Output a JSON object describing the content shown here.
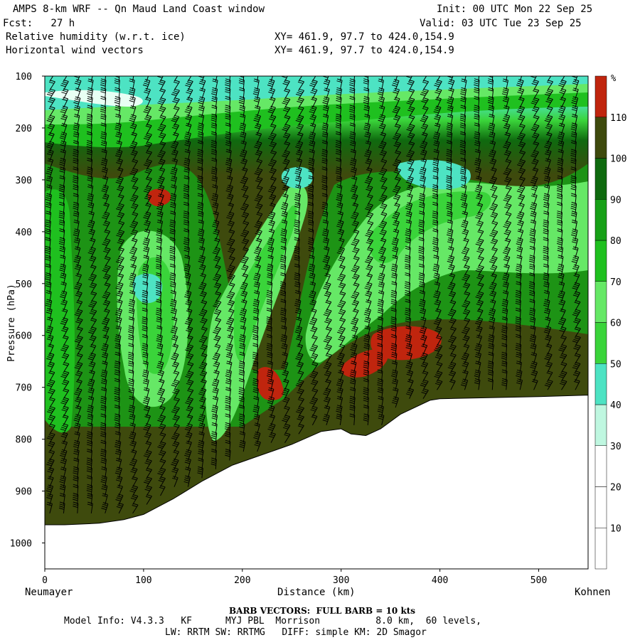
{
  "header": {
    "title": "AMPS 8-km WRF -- Qn Maud Land Coast window",
    "init": "Init: 00 UTC Mon 22 Sep 25",
    "fcst": "Fcst:   27 h",
    "valid": "Valid: 03 UTC Tue 23 Sep 25",
    "field1": "Relative humidity (w.r.t. ice)",
    "field2": "Horizontal wind vectors",
    "xy1": "XY= 461.9, 97.7 to 424.0,154.9",
    "xy2": "XY= 461.9, 97.7 to 424.0,154.9"
  },
  "footer": {
    "barb_note": "BARB VECTORS:  FULL BARB = 10 kts",
    "model_info_1": "Model Info: V4.3.3   KF      MYJ PBL  Morrison          8.0 km,  60 levels,",
    "model_info_2": "LW: RRTM SW: RRTMG   DIFF: simple KM: 2D Smagor"
  },
  "chart_data": {
    "type": "heatmap",
    "title": "Relative humidity (w.r.t. ice)",
    "xlabel": "Distance (km)",
    "ylabel": "Pressure (hPa)",
    "x_left_label": "Neumayer",
    "x_right_label": "Kohnen",
    "xlim": [
      0,
      550
    ],
    "ylim": [
      1050,
      100
    ],
    "x_ticks": [
      0,
      100,
      200,
      300,
      400,
      500
    ],
    "y_ticks": [
      100,
      200,
      300,
      400,
      500,
      600,
      700,
      800,
      900,
      1000
    ],
    "colorbar": {
      "unit": "%",
      "levels": [
        10,
        20,
        30,
        40,
        50,
        60,
        70,
        80,
        90,
        100,
        110
      ],
      "colors": [
        "#ffffff",
        "#ffffff",
        "#ffffff",
        "#bff7e0",
        "#4de3c3",
        "#3ad43a",
        "#66e866",
        "#1fc01f",
        "#17a017",
        "#0f6a0f",
        "#3e4a0d",
        "#c0250e"
      ]
    },
    "terrain_pressure": [
      [
        0,
        965
      ],
      [
        20,
        965
      ],
      [
        55,
        962
      ],
      [
        80,
        955
      ],
      [
        100,
        945
      ],
      [
        130,
        915
      ],
      [
        160,
        880
      ],
      [
        190,
        850
      ],
      [
        220,
        830
      ],
      [
        250,
        810
      ],
      [
        280,
        785
      ],
      [
        300,
        780
      ],
      [
        310,
        790
      ],
      [
        325,
        793
      ],
      [
        340,
        780
      ],
      [
        360,
        752
      ],
      [
        390,
        725
      ],
      [
        400,
        722
      ],
      [
        450,
        720
      ],
      [
        500,
        718
      ],
      [
        550,
        715
      ]
    ],
    "high_rh_cores_pct_gt_110": [
      {
        "x": 113,
        "p": 335
      },
      {
        "x": 228,
        "p": 695
      },
      {
        "x": 320,
        "p": 655
      },
      {
        "x": 365,
        "p": 615
      }
    ],
    "barb_full_kts": 10
  }
}
